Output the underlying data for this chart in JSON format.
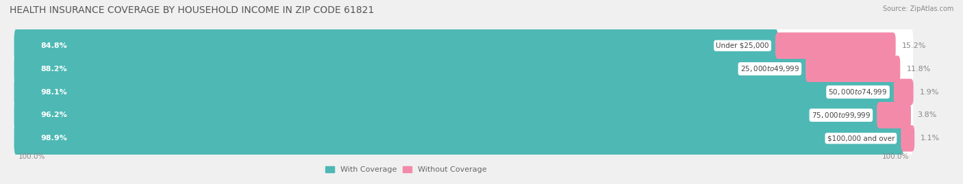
{
  "title": "HEALTH INSURANCE COVERAGE BY HOUSEHOLD INCOME IN ZIP CODE 61821",
  "source": "Source: ZipAtlas.com",
  "categories": [
    "Under $25,000",
    "$25,000 to $49,999",
    "$50,000 to $74,999",
    "$75,000 to $99,999",
    "$100,000 and over"
  ],
  "with_coverage": [
    84.8,
    88.2,
    98.1,
    96.2,
    98.9
  ],
  "without_coverage": [
    15.2,
    11.8,
    1.9,
    3.8,
    1.1
  ],
  "color_coverage": "#4db8b4",
  "color_without": "#f48aaa",
  "background_color": "#f0f0f0",
  "bar_background": "#ffffff",
  "bar_shadow": "#e0e0e0",
  "title_fontsize": 10,
  "label_fontsize": 8,
  "tick_fontsize": 7.5,
  "bar_height": 0.62,
  "total_bar_width": 65,
  "xlim_max": 120,
  "x_left_label": "100.0%",
  "x_right_label": "100.0%"
}
